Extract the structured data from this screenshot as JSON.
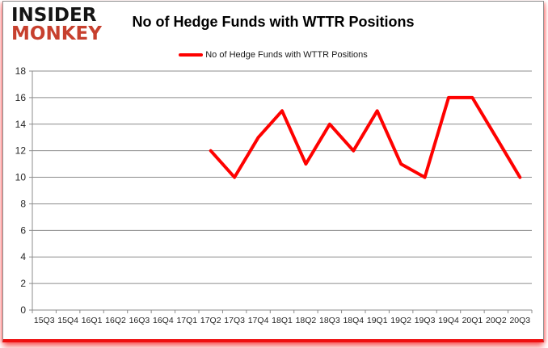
{
  "logo": {
    "line1": "INSIDER",
    "line2": "MONKEY"
  },
  "header": {
    "title": "No of Hedge Funds with WTTR Positions"
  },
  "legend": {
    "label": "No of Hedge Funds with WTTR Positions",
    "swatch_color": "#fe0100"
  },
  "chart_data": {
    "type": "line",
    "title": "No of Hedge Funds with WTTR Positions",
    "categories": [
      "15Q3",
      "15Q4",
      "16Q1",
      "16Q2",
      "16Q3",
      "16Q4",
      "17Q1",
      "17Q2",
      "17Q3",
      "17Q4",
      "18Q1",
      "18Q2",
      "18Q3",
      "18Q4",
      "19Q1",
      "19Q2",
      "19Q3",
      "19Q4",
      "20Q1",
      "20Q2",
      "20Q3"
    ],
    "series": [
      {
        "name": "No of Hedge Funds with WTTR Positions",
        "color": "#fe0100",
        "values": [
          null,
          null,
          null,
          null,
          null,
          null,
          null,
          12,
          10,
          13,
          15,
          11,
          14,
          12,
          15,
          11,
          10,
          16,
          16,
          13,
          10
        ]
      }
    ],
    "xlabel": "",
    "ylabel": "",
    "ylim": [
      0,
      18
    ],
    "ytick_step": 2,
    "grid": true,
    "legend_position": "top",
    "gridline_color": "#8c8c8c",
    "axis_label_color": "#262626"
  }
}
